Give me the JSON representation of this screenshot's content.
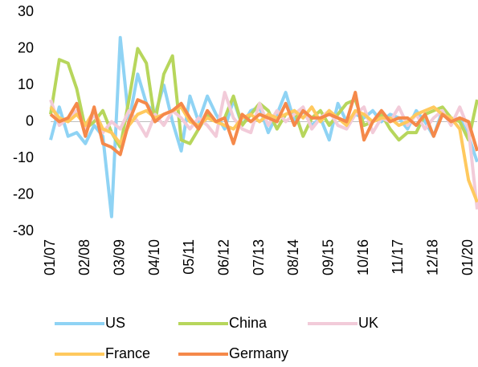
{
  "chart_data": {
    "type": "line",
    "categories": [
      "01/07",
      null,
      null,
      null,
      "02/08",
      null,
      null,
      null,
      "03/09",
      null,
      null,
      null,
      "04/10",
      null,
      null,
      null,
      "05/11",
      null,
      null,
      null,
      "06/12",
      null,
      null,
      null,
      "07/13",
      null,
      null,
      null,
      "08/14",
      null,
      null,
      null,
      "09/15",
      null,
      null,
      null,
      "10/16",
      null,
      null,
      null,
      "11/17",
      null,
      null,
      null,
      "12/18",
      null,
      null,
      null,
      "01/20",
      null
    ],
    "series": [
      {
        "name": "US",
        "color": "#8fd3f4",
        "values": [
          -5,
          4,
          -4,
          -3,
          -6,
          -1,
          -4,
          -26,
          23,
          0,
          13,
          5,
          2,
          10,
          0,
          -8,
          7,
          0,
          7,
          2,
          -2,
          6,
          -1,
          3,
          4,
          -3,
          2,
          8,
          0,
          3,
          -1,
          1,
          -5,
          5,
          0,
          2,
          1,
          3,
          0,
          2,
          1,
          -2,
          3,
          0,
          -4,
          3,
          0,
          1,
          -4,
          -11
        ]
      },
      {
        "name": "China",
        "color": "#b7d65c",
        "values": [
          2,
          17,
          16,
          9,
          -2,
          0,
          3,
          -3,
          -7,
          6,
          20,
          16,
          0,
          13,
          18,
          -5,
          -6,
          -2,
          2,
          0,
          1,
          7,
          -1,
          2,
          5,
          3,
          -2,
          2,
          3,
          -4,
          1,
          3,
          -1,
          2,
          5,
          6,
          -1,
          0,
          2,
          -2,
          -5,
          -3,
          -3,
          2,
          3,
          4,
          1,
          0,
          -5,
          6
        ]
      },
      {
        "name": "UK",
        "color": "#f2cbd9",
        "values": [
          6,
          -1,
          1,
          3,
          -2,
          2,
          -3,
          0,
          -2,
          3,
          0,
          -4,
          2,
          -1,
          3,
          1,
          -2,
          1,
          -1,
          -4,
          8,
          1,
          -2,
          -3,
          5,
          -1,
          3,
          0,
          2,
          4,
          -2,
          1,
          3,
          -1,
          -2,
          2,
          4,
          -3,
          1,
          0,
          4,
          -1,
          2,
          -2,
          1,
          3,
          -1,
          4,
          -2,
          -24
        ]
      },
      {
        "name": "France",
        "color": "#ffc95e",
        "values": [
          4,
          1,
          0,
          2,
          -1,
          3,
          -2,
          -3,
          -6,
          -1,
          2,
          3,
          1,
          2,
          3,
          4,
          0,
          -1,
          1,
          0,
          -1,
          -2,
          1,
          2,
          0,
          2,
          1,
          2,
          3,
          1,
          4,
          0,
          3,
          1,
          -1,
          3,
          2,
          0,
          1,
          1,
          -1,
          0,
          2,
          3,
          4,
          2,
          1,
          -2,
          -16,
          -22
        ]
      },
      {
        "name": "Germany",
        "color": "#f5894a",
        "values": [
          2,
          0,
          1,
          5,
          -4,
          4,
          -6,
          -7,
          -9,
          0,
          6,
          5,
          0,
          2,
          3,
          5,
          1,
          -2,
          3,
          0,
          1,
          -6,
          2,
          0,
          2,
          1,
          0,
          5,
          -1,
          3,
          1,
          1,
          2,
          1,
          0,
          8,
          -5,
          0,
          3,
          0,
          1,
          1,
          -1,
          2,
          -4,
          2,
          0,
          1,
          0,
          -8
        ]
      }
    ],
    "ylim": [
      -30,
      30
    ],
    "yticks": [
      -30,
      -20,
      -10,
      0,
      10,
      20,
      30
    ],
    "grid": false,
    "legend": "bottom"
  }
}
